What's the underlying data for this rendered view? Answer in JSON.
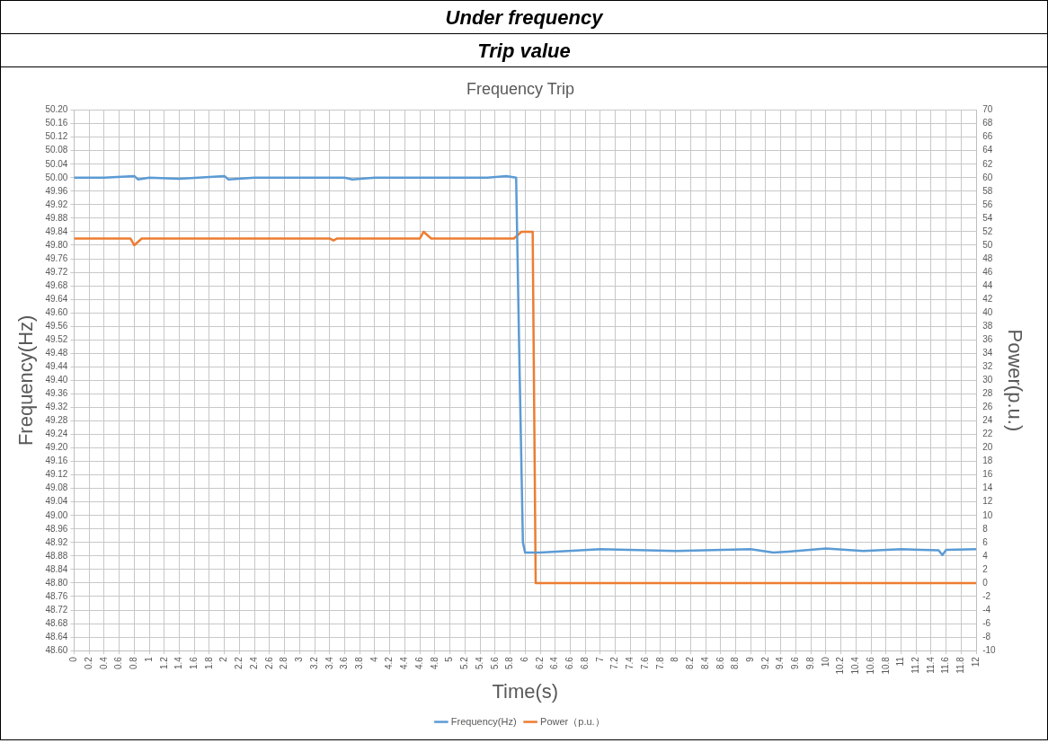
{
  "chart_data": {
    "type": "line",
    "title": "Frequency Trip",
    "xlabel": "Time(s)",
    "ylabel": "Frequency(Hz)",
    "y2label": "Power(p.u.)",
    "annotations": [
      "Under frequency",
      "Trip value"
    ],
    "grid": true,
    "legend": "bottom",
    "marker": "none",
    "line_style": "solid",
    "xlim": [
      0,
      12
    ],
    "xticks": [
      0,
      0.2,
      0.4,
      0.6,
      0.8,
      1,
      1.2,
      1.4,
      1.6,
      1.8,
      2,
      2.2,
      2.4,
      2.6,
      2.8,
      3,
      3.2,
      3.4,
      3.6,
      3.8,
      4,
      4.2,
      4.4,
      4.6,
      4.8,
      5,
      5.2,
      5.4,
      5.6,
      5.8,
      6,
      6.2,
      6.4,
      6.6,
      6.8,
      7,
      7.2,
      7.4,
      7.6,
      7.8,
      8,
      8.2,
      8.4,
      8.6,
      8.8,
      9,
      9.2,
      9.4,
      9.6,
      9.8,
      10,
      10.2,
      10.4,
      10.6,
      10.8,
      11,
      11.2,
      11.4,
      11.6,
      11.8,
      12
    ],
    "ylim": [
      48.6,
      50.2
    ],
    "yticks": [
      {
        "value": 48.6,
        "label": "48.60"
      },
      48.64,
      48.68,
      48.72,
      48.76,
      {
        "value": 48.8,
        "label": "48.80"
      },
      48.84,
      48.88,
      48.92,
      48.96,
      {
        "value": 49,
        "label": "49.00"
      },
      49.04,
      49.08,
      49.12,
      49.16,
      {
        "value": 49.2,
        "label": "49.20"
      },
      49.24,
      49.28,
      49.32,
      49.36,
      {
        "value": 49.4,
        "label": "49.40"
      },
      49.44,
      49.48,
      49.52,
      49.56,
      {
        "value": 49.6,
        "label": "49.60"
      },
      49.64,
      49.68,
      49.72,
      49.76,
      {
        "value": 49.8,
        "label": "49.80"
      },
      49.84,
      49.88,
      49.92,
      49.96,
      {
        "value": 50,
        "label": "50.00"
      },
      50.04,
      50.08,
      50.12,
      50.16,
      {
        "value": 50.2,
        "label": "50.20"
      }
    ],
    "y2lim": [
      -10,
      70
    ],
    "y2ticks": [
      -10,
      -8,
      -6,
      -4,
      -2,
      0,
      2,
      4,
      6,
      8,
      10,
      12,
      14,
      16,
      18,
      20,
      22,
      24,
      26,
      28,
      30,
      32,
      34,
      36,
      38,
      40,
      42,
      44,
      46,
      48,
      50,
      52,
      54,
      56,
      58,
      60,
      62,
      64,
      66,
      68,
      70
    ],
    "series": [
      {
        "name": "Frequency(Hz)",
        "color": "#5b9bd5",
        "x": [
          0,
          0.4,
          0.8,
          0.85,
          1.0,
          1.4,
          2.0,
          2.05,
          2.4,
          3.0,
          3.6,
          3.7,
          4.0,
          4.6,
          5.2,
          5.5,
          5.75,
          5.88,
          5.92,
          5.97,
          6.0,
          6.2,
          7.0,
          8.0,
          9.0,
          9.3,
          9.5,
          10.0,
          10.5,
          11.0,
          11.5,
          11.55,
          11.6,
          12.0
        ],
        "values": [
          50.0,
          50.0,
          50.005,
          49.995,
          50.0,
          49.997,
          50.005,
          49.995,
          50.0,
          50.0,
          50.0,
          49.995,
          50.0,
          50.0,
          50.0,
          50.0,
          50.005,
          50.0,
          49.5,
          48.92,
          48.89,
          48.89,
          48.9,
          48.895,
          48.9,
          48.89,
          48.893,
          48.902,
          48.895,
          48.9,
          48.897,
          48.883,
          48.898,
          48.9
        ]
      },
      {
        "name": "Power（p.u.）",
        "color": "#ed7d31",
        "axis": "y2",
        "x": [
          0,
          0.75,
          0.8,
          0.9,
          3.4,
          3.45,
          3.5,
          4.6,
          4.65,
          4.75,
          5.85,
          5.95,
          6.1,
          6.14,
          12
        ],
        "values": [
          51,
          51,
          50,
          51,
          51,
          50.7,
          51,
          51,
          52,
          51,
          51,
          52,
          52,
          0,
          0
        ]
      }
    ]
  }
}
